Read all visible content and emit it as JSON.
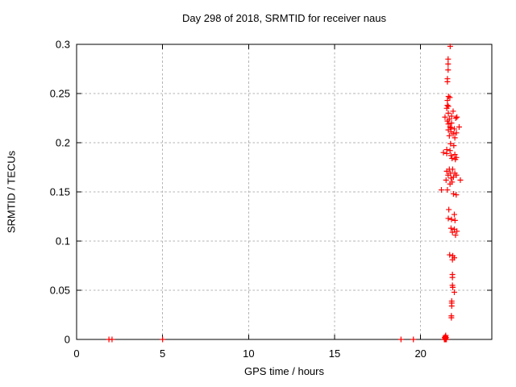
{
  "chart_data": {
    "type": "scatter",
    "title": "Day 298 of 2018, SRMTID for receiver naus",
    "xlabel": "GPS time / hours",
    "ylabel": "SRMTID / TECUs",
    "xlim": [
      0,
      24.14
    ],
    "ylim": [
      0,
      0.3
    ],
    "xticks": [
      {
        "v": 0,
        "label": "0"
      },
      {
        "v": 5,
        "label": "5"
      },
      {
        "v": 10,
        "label": "10"
      },
      {
        "v": 15,
        "label": "15"
      },
      {
        "v": 20,
        "label": "20"
      }
    ],
    "yticks": [
      {
        "v": 0,
        "label": "0"
      },
      {
        "v": 0.05,
        "label": "0.05"
      },
      {
        "v": 0.1,
        "label": "0.1"
      },
      {
        "v": 0.15,
        "label": "0.15"
      },
      {
        "v": 0.2,
        "label": "0.2"
      },
      {
        "v": 0.25,
        "label": "0.25"
      },
      {
        "v": 0.3,
        "label": "0.3"
      }
    ],
    "grid": true,
    "legend": "none",
    "marker": {
      "shape": "plus",
      "size": 7
    },
    "colors": {
      "marker": "#ff0000",
      "grid": "#b3b3b3",
      "border": "#000000",
      "text": "#000000",
      "background": "#ffffff"
    },
    "series_name": "SRMTID",
    "points": [
      [
        1.88,
        0
      ],
      [
        2.06,
        0
      ],
      [
        5.0,
        0
      ],
      [
        18.86,
        0
      ],
      [
        19.58,
        0
      ],
      [
        21.38,
        0
      ],
      [
        21.4,
        0.002
      ],
      [
        21.42,
        0
      ],
      [
        21.44,
        0.003
      ],
      [
        21.45,
        0.001
      ],
      [
        21.47,
        0
      ],
      [
        21.48,
        0.002
      ],
      [
        21.5,
        0
      ],
      [
        21.43,
        0.001
      ],
      [
        21.46,
        0.004
      ],
      [
        21.72,
        0.298
      ],
      [
        21.6,
        0.285
      ],
      [
        21.6,
        0.28
      ],
      [
        21.6,
        0.274
      ],
      [
        21.56,
        0.265
      ],
      [
        21.56,
        0.262
      ],
      [
        21.62,
        0.247
      ],
      [
        21.7,
        0.246
      ],
      [
        21.56,
        0.243
      ],
      [
        21.56,
        0.238
      ],
      [
        21.61,
        0.237
      ],
      [
        21.52,
        0.235
      ],
      [
        21.89,
        0.232
      ],
      [
        21.61,
        0.23
      ],
      [
        21.8,
        0.227
      ],
      [
        21.42,
        0.226
      ],
      [
        22.11,
        0.226
      ],
      [
        22.04,
        0.225
      ],
      [
        21.67,
        0.224
      ],
      [
        21.56,
        0.222
      ],
      [
        21.8,
        0.22
      ],
      [
        21.61,
        0.219
      ],
      [
        21.71,
        0.216
      ],
      [
        22.24,
        0.216
      ],
      [
        21.77,
        0.215
      ],
      [
        21.96,
        0.214
      ],
      [
        21.61,
        0.213
      ],
      [
        21.77,
        0.211
      ],
      [
        22.08,
        0.21
      ],
      [
        21.89,
        0.209
      ],
      [
        21.67,
        0.207
      ],
      [
        21.99,
        0.205
      ],
      [
        21.74,
        0.199
      ],
      [
        21.93,
        0.197
      ],
      [
        21.52,
        0.193
      ],
      [
        21.71,
        0.192
      ],
      [
        21.33,
        0.19
      ],
      [
        21.52,
        0.189
      ],
      [
        21.99,
        0.188
      ],
      [
        21.77,
        0.187
      ],
      [
        22.08,
        0.185
      ],
      [
        21.83,
        0.184
      ],
      [
        22.02,
        0.183
      ],
      [
        21.67,
        0.173
      ],
      [
        21.86,
        0.173
      ],
      [
        21.52,
        0.171
      ],
      [
        21.99,
        0.169
      ],
      [
        21.74,
        0.169
      ],
      [
        22.08,
        0.167
      ],
      [
        21.6,
        0.167
      ],
      [
        21.91,
        0.165
      ],
      [
        21.77,
        0.164
      ],
      [
        21.48,
        0.162
      ],
      [
        22.31,
        0.162
      ],
      [
        21.83,
        0.16
      ],
      [
        21.71,
        0.158
      ],
      [
        21.21,
        0.152
      ],
      [
        21.56,
        0.152
      ],
      [
        21.91,
        0.148
      ],
      [
        22.07,
        0.147
      ],
      [
        21.64,
        0.132
      ],
      [
        21.96,
        0.127
      ],
      [
        21.61,
        0.123
      ],
      [
        21.8,
        0.122
      ],
      [
        22.0,
        0.121
      ],
      [
        21.77,
        0.113
      ],
      [
        21.96,
        0.112
      ],
      [
        22.11,
        0.11
      ],
      [
        21.85,
        0.109
      ],
      [
        22.03,
        0.106
      ],
      [
        21.69,
        0.086
      ],
      [
        21.87,
        0.085
      ],
      [
        21.96,
        0.083
      ],
      [
        21.85,
        0.081
      ],
      [
        21.85,
        0.066
      ],
      [
        21.85,
        0.063
      ],
      [
        21.85,
        0.055
      ],
      [
        21.87,
        0.053
      ],
      [
        21.96,
        0.048
      ],
      [
        21.81,
        0.039
      ],
      [
        21.81,
        0.037
      ],
      [
        21.81,
        0.034
      ],
      [
        21.79,
        0.024
      ],
      [
        21.79,
        0.022
      ]
    ]
  }
}
